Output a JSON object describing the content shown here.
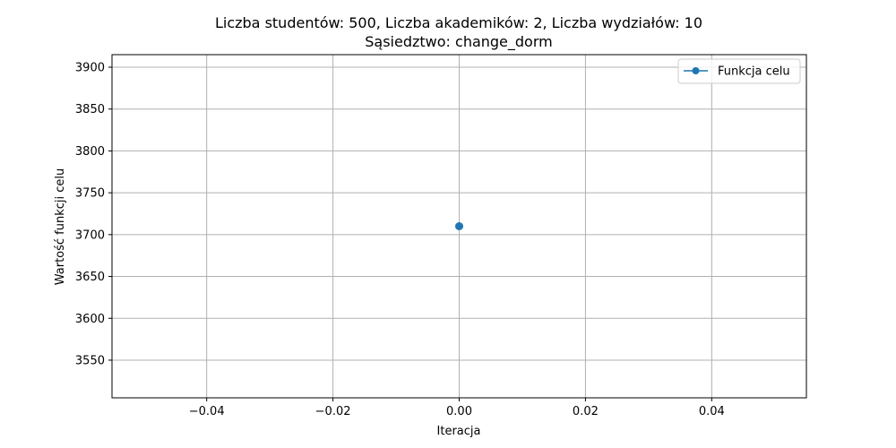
{
  "chart_data": {
    "type": "line",
    "title": "Liczba studentów: 500, Liczba akademików: 2, Liczba wydziałów: 10",
    "subtitle": "Sąsiedztwo: change_dorm",
    "xlabel": "Iteracja",
    "ylabel": "Wartość funkcji celu",
    "xlim": [
      -0.055,
      0.055
    ],
    "ylim": [
      3505,
      3915
    ],
    "xticks": [
      -0.04,
      -0.02,
      0.0,
      0.02,
      0.04
    ],
    "xtick_labels": [
      "−0.04",
      "−0.02",
      "0.00",
      "0.02",
      "0.04"
    ],
    "yticks": [
      3550,
      3600,
      3650,
      3700,
      3750,
      3800,
      3850,
      3900
    ],
    "ytick_labels": [
      "3550",
      "3600",
      "3650",
      "3700",
      "3750",
      "3800",
      "3850",
      "3900"
    ],
    "grid": true,
    "legend_position": "top-right",
    "series": [
      {
        "name": "Funkcja celu",
        "color": "#1f77b4",
        "marker": "circle",
        "x": [
          0
        ],
        "y": [
          3710
        ]
      }
    ]
  }
}
